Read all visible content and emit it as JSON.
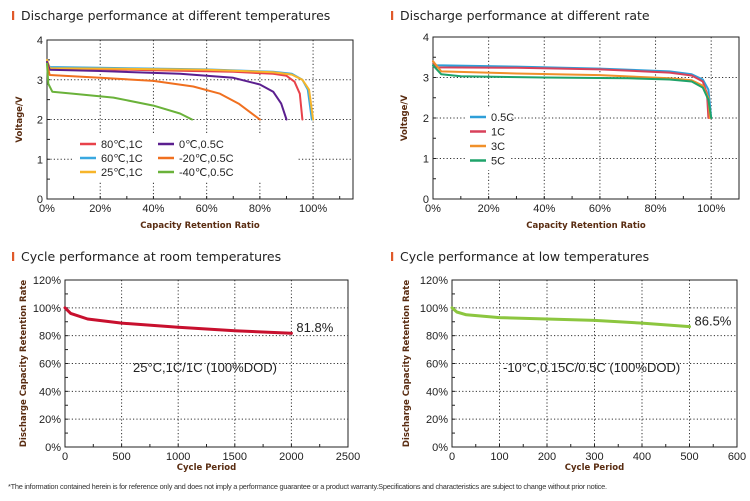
{
  "footer": "*The information contained herein is for reference only and does not imply a performance guarantee or a product warranty.Specifications and characteristics are subject to change without prior notice.",
  "title_marker_color": "#e0592a",
  "chart_data": [
    {
      "type": "line",
      "title": "Discharge performance at different temperatures",
      "xlabel": "Capacity Retention Ratio",
      "ylabel": "Voltage/V",
      "xlim": [
        0,
        115
      ],
      "ylim": [
        0,
        4
      ],
      "xticks": [
        "0%",
        "20%",
        "40%",
        "60%",
        "80%",
        "100%"
      ],
      "xtick_values": [
        0,
        20,
        40,
        60,
        80,
        100
      ],
      "yticks": [
        "0",
        "1",
        "2",
        "3",
        "4"
      ],
      "ytick_values": [
        0,
        1,
        2,
        3,
        4
      ],
      "grid": "dotted",
      "legend": "bottom-center",
      "series": [
        {
          "name": "80℃,1C",
          "color": "#e8424a",
          "points": [
            [
              0,
              3.45
            ],
            [
              1,
              3.3
            ],
            [
              10,
              3.28
            ],
            [
              40,
              3.24
            ],
            [
              70,
              3.2
            ],
            [
              85,
              3.15
            ],
            [
              90,
              3.1
            ],
            [
              93,
              2.95
            ],
            [
              95,
              2.65
            ],
            [
              96,
              2.0
            ]
          ]
        },
        {
          "name": "60℃,1C",
          "color": "#3aa8e0",
          "points": [
            [
              0,
              3.45
            ],
            [
              1,
              3.32
            ],
            [
              20,
              3.3
            ],
            [
              60,
              3.26
            ],
            [
              85,
              3.2
            ],
            [
              92,
              3.15
            ],
            [
              96,
              3.0
            ],
            [
              98,
              2.75
            ],
            [
              99.5,
              2.0
            ]
          ]
        },
        {
          "name": "25℃,1C",
          "color": "#f7b52a",
          "points": [
            [
              0,
              3.5
            ],
            [
              1,
              3.29
            ],
            [
              20,
              3.28
            ],
            [
              60,
              3.25
            ],
            [
              85,
              3.19
            ],
            [
              92,
              3.13
            ],
            [
              96,
              3.0
            ],
            [
              98.5,
              2.75
            ],
            [
              100,
              2.0
            ]
          ]
        },
        {
          "name": "0℃,0.5C",
          "color": "#5b1f8f",
          "points": [
            [
              0,
              3.45
            ],
            [
              1,
              3.25
            ],
            [
              20,
              3.22
            ],
            [
              50,
              3.15
            ],
            [
              70,
              3.05
            ],
            [
              80,
              2.88
            ],
            [
              85,
              2.7
            ],
            [
              88,
              2.4
            ],
            [
              90,
              2.0
            ]
          ]
        },
        {
          "name": "-20℃,0.5C",
          "color": "#f07020",
          "points": [
            [
              0,
              3.4
            ],
            [
              1,
              3.12
            ],
            [
              20,
              3.05
            ],
            [
              40,
              2.97
            ],
            [
              55,
              2.83
            ],
            [
              65,
              2.65
            ],
            [
              72,
              2.4
            ],
            [
              80,
              2.0
            ]
          ]
        },
        {
          "name": "-40℃,0.5C",
          "color": "#6ab23a",
          "points": [
            [
              0,
              3.4
            ],
            [
              0.5,
              2.9
            ],
            [
              2,
              2.7
            ],
            [
              10,
              2.65
            ],
            [
              25,
              2.55
            ],
            [
              40,
              2.35
            ],
            [
              50,
              2.15
            ],
            [
              54.5,
              2.0
            ]
          ]
        }
      ]
    },
    {
      "type": "line",
      "title": "Discharge performance at different rate",
      "xlabel": "Capacity Retention Ratio",
      "ylabel": "Voltage/V",
      "xlim": [
        0,
        110
      ],
      "ylim": [
        0,
        4
      ],
      "xticks": [
        "0%",
        "20%",
        "40%",
        "60%",
        "80%",
        "100%"
      ],
      "xtick_values": [
        0,
        20,
        40,
        60,
        80,
        100
      ],
      "yticks": [
        "0",
        "1",
        "2",
        "3",
        "4"
      ],
      "ytick_values": [
        0,
        1,
        2,
        3,
        4
      ],
      "grid": "dotted",
      "legend": "center-left",
      "series": [
        {
          "name": "0.5C",
          "color": "#2e9fd8",
          "points": [
            [
              0,
              3.4
            ],
            [
              1,
              3.3
            ],
            [
              30,
              3.27
            ],
            [
              60,
              3.22
            ],
            [
              85,
              3.15
            ],
            [
              93,
              3.08
            ],
            [
              97,
              2.95
            ],
            [
              99,
              2.7
            ],
            [
              100,
              2.0
            ]
          ]
        },
        {
          "name": "1C",
          "color": "#d8415a",
          "points": [
            [
              0,
              3.4
            ],
            [
              1,
              3.25
            ],
            [
              30,
              3.24
            ],
            [
              60,
              3.2
            ],
            [
              85,
              3.12
            ],
            [
              93,
              3.05
            ],
            [
              97,
              2.9
            ],
            [
              98.5,
              2.6
            ],
            [
              99,
              2.0
            ]
          ]
        },
        {
          "name": "3C",
          "color": "#f0902a",
          "points": [
            [
              0,
              3.4
            ],
            [
              3,
              3.15
            ],
            [
              30,
              3.1
            ],
            [
              60,
              3.06
            ],
            [
              85,
              2.98
            ],
            [
              93,
              2.93
            ],
            [
              97,
              2.8
            ],
            [
              99,
              2.5
            ],
            [
              99.5,
              2.0
            ]
          ]
        },
        {
          "name": "5C",
          "color": "#1fa36a",
          "points": [
            [
              0,
              3.3
            ],
            [
              3,
              3.08
            ],
            [
              10,
              3.03
            ],
            [
              40,
              3.0
            ],
            [
              70,
              2.98
            ],
            [
              85,
              2.95
            ],
            [
              93,
              2.9
            ],
            [
              97,
              2.75
            ],
            [
              99,
              2.45
            ],
            [
              100,
              2.0
            ]
          ]
        }
      ]
    },
    {
      "type": "line",
      "title": "Cycle performance at room temperatures",
      "xlabel": "Cycle Period",
      "ylabel": "Discharge Capacity Retention Rate",
      "xlim": [
        0,
        2500
      ],
      "ylim": [
        0,
        120
      ],
      "xticks": [
        "0",
        "500",
        "1000",
        "1500",
        "2000",
        "2500"
      ],
      "xtick_values": [
        0,
        500,
        1000,
        1500,
        2000,
        2500
      ],
      "yticks": [
        "0%",
        "20%",
        "40%",
        "60%",
        "80%",
        "100%",
        "120%"
      ],
      "ytick_values": [
        0,
        20,
        40,
        60,
        80,
        100,
        120
      ],
      "grid": "dotted",
      "annotation": "25°C,1C/1C (100%DOD)",
      "end_label": "81.8%",
      "series": [
        {
          "color": "#c8102e",
          "points": [
            [
              0,
              100
            ],
            [
              50,
              96
            ],
            [
              200,
              92
            ],
            [
              500,
              89
            ],
            [
              1000,
              86
            ],
            [
              1500,
              83.5
            ],
            [
              2000,
              81.8
            ]
          ]
        }
      ]
    },
    {
      "type": "line",
      "title": "Cycle performance at low temperatures",
      "xlabel": "Cycle Period",
      "ylabel": "Discharge Capacity Retention Rate",
      "xlim": [
        0,
        600
      ],
      "ylim": [
        0,
        120
      ],
      "xticks": [
        "0",
        "100",
        "200",
        "300",
        "400",
        "500",
        "600"
      ],
      "xtick_values": [
        0,
        100,
        200,
        300,
        400,
        500,
        600
      ],
      "yticks": [
        "0%",
        "20%",
        "40%",
        "60%",
        "80%",
        "100%",
        "120%"
      ],
      "ytick_values": [
        0,
        20,
        40,
        60,
        80,
        100,
        120
      ],
      "grid": "dotted",
      "annotation": "-10°C,0.15C/0.5C (100%DOD)",
      "end_label": "86.5%",
      "series": [
        {
          "color": "#8cc63f",
          "points": [
            [
              0,
              100
            ],
            [
              10,
              97
            ],
            [
              30,
              95
            ],
            [
              100,
              93
            ],
            [
              200,
              92
            ],
            [
              300,
              91
            ],
            [
              400,
              89
            ],
            [
              500,
              86.5
            ]
          ]
        }
      ]
    }
  ]
}
